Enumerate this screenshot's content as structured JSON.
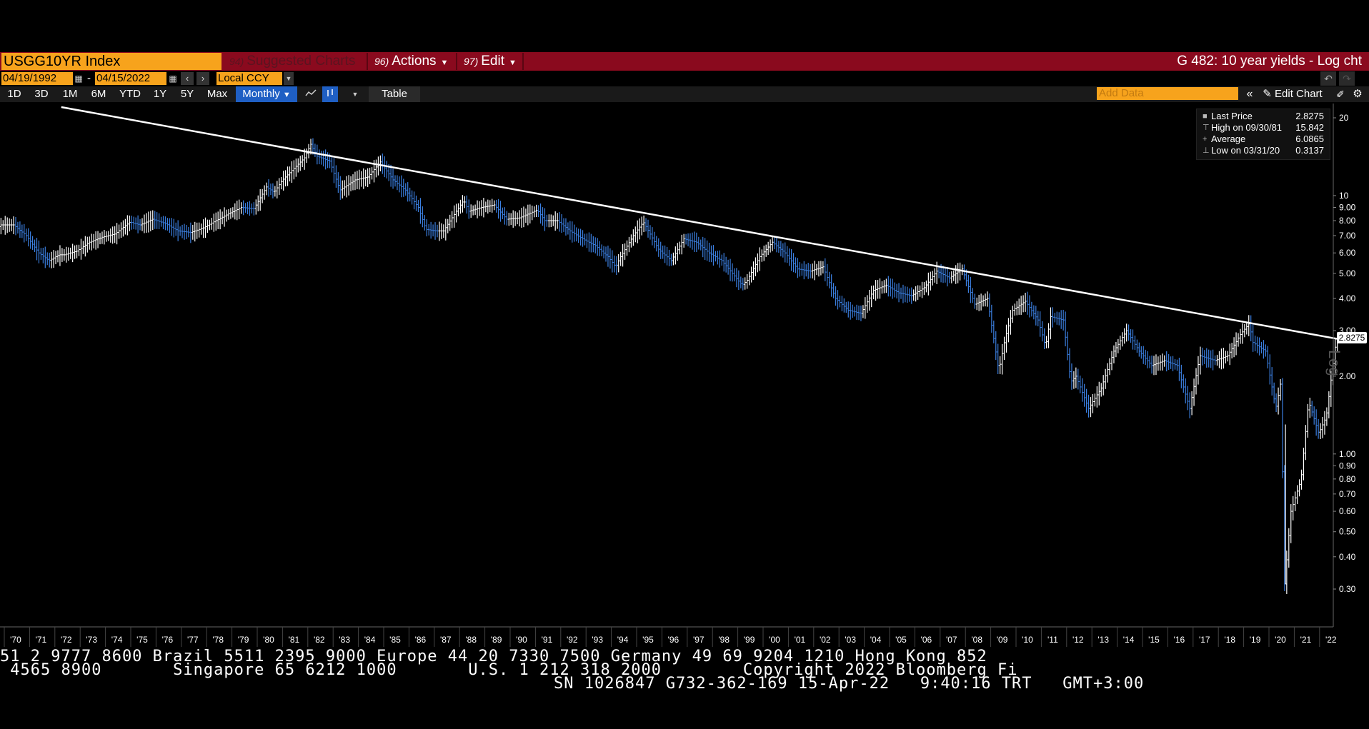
{
  "header": {
    "ticker": "USGG10YR Index",
    "menu": [
      {
        "num": "94)",
        "label": "Suggested Charts",
        "dim": true
      },
      {
        "num": "96)",
        "label": "Actions"
      },
      {
        "num": "97)",
        "label": "Edit"
      }
    ],
    "title": "G 482: 10 year yields - Log cht"
  },
  "dates": {
    "start": "04/19/1992",
    "end": "04/15/2022",
    "currency": "Local CCY"
  },
  "ranges": [
    "1D",
    "3D",
    "1M",
    "6M",
    "YTD",
    "1Y",
    "5Y",
    "Max"
  ],
  "frequency": "Monthly",
  "table_label": "Table",
  "add_data_placeholder": "Add Data",
  "edit_chart_label": "Edit Chart",
  "legend": [
    {
      "label": "Last Price",
      "value": "2.8275"
    },
    {
      "label": "High on 09/30/81",
      "value": "15.842"
    },
    {
      "label": "Average",
      "value": "6.0865"
    },
    {
      "label": "Low on 03/31/20",
      "value": "0.3137"
    }
  ],
  "last_price_tag": "2.8275",
  "scale_tag": "Log",
  "tape": {
    "line1": "51 2 9777 8600 Brazil 5511 2395 9000 Europe 44 20 7330 7500 Germany 49 69 9204 1210 Hong Kong 852",
    "line2": " 4565 8900       Singapore 65 6212 1000       U.S. 1 212 318 2000        Copyright 2022 Bloomberg Fi",
    "line3": "SN 1026847 G732-362-169 15-Apr-22   9:40:16 TRT   GMT+3:00"
  },
  "colors": {
    "accent": "#f7a31c",
    "titlebar": "#8a0a1e",
    "up": "#ffffff",
    "down": "#3b7fe0"
  },
  "chart_data": {
    "type": "line",
    "scale": "log",
    "grid": false,
    "legend_position": "top-right",
    "ylim": [
      0.27,
      22
    ],
    "yticks": [
      "20",
      "10",
      "9.00",
      "8.00",
      "7.00",
      "6.00",
      "5.00",
      "4.00",
      "3.00",
      "2.00",
      "1.00",
      "0.90",
      "0.80",
      "0.70",
      "0.60",
      "0.50",
      "0.40",
      "0.30"
    ],
    "yvalues": [
      20,
      10,
      9,
      8,
      7,
      6,
      5,
      4,
      3,
      2,
      1,
      0.9,
      0.8,
      0.7,
      0.6,
      0.5,
      0.4,
      0.3
    ],
    "xlim": [
      1969.0,
      2022.6
    ],
    "xticks": [
      "'70",
      "'71",
      "'72",
      "'73",
      "'74",
      "'75",
      "'76",
      "'77",
      "'78",
      "'79",
      "'80",
      "'81",
      "'82",
      "'83",
      "'84",
      "'85",
      "'86",
      "'87",
      "'88",
      "'89",
      "'90",
      "'91",
      "'92",
      "'93",
      "'94",
      "'95",
      "'96",
      "'97",
      "'98",
      "'99",
      "'00",
      "'01",
      "'02",
      "'03",
      "'04",
      "'05",
      "'06",
      "'07",
      "'08",
      "'09",
      "'10",
      "'11",
      "'12",
      "'13",
      "'14",
      "'15",
      "'16",
      "'17",
      "'18",
      "'19",
      "'20",
      "'21",
      "'22"
    ],
    "series": [
      {
        "x": [
          1969.0,
          1969.5,
          1970.0,
          1970.5,
          1971.0,
          1971.4,
          1971.8,
          1972.0,
          1972.5,
          1973.0,
          1973.5,
          1974.0,
          1974.6,
          1975.0,
          1975.5,
          1976.0,
          1976.5,
          1977.0,
          1977.5,
          1978.0,
          1978.5,
          1979.0,
          1979.5,
          1980.0,
          1980.3,
          1980.6,
          1981.0,
          1981.5,
          1981.75,
          1982.0,
          1982.5,
          1982.9,
          1983.5,
          1984.0,
          1984.5,
          1985.0,
          1985.5,
          1986.0,
          1986.3,
          1986.7,
          1987.0,
          1987.5,
          1987.8,
          1988.0,
          1988.5,
          1989.0,
          1989.5,
          1990.0,
          1990.7,
          1991.0,
          1991.5,
          1992.0,
          1992.5,
          1993.0,
          1993.5,
          1993.8,
          1994.0,
          1994.5,
          1994.9,
          1995.5,
          1996.0,
          1996.5,
          1997.0,
          1997.5,
          1998.0,
          1998.8,
          1999.0,
          1999.5,
          2000.0,
          2000.5,
          2001.0,
          2001.5,
          2002.0,
          2002.5,
          2003.0,
          2003.5,
          2004.0,
          2004.5,
          2005.0,
          2005.5,
          2006.0,
          2006.5,
          2007.0,
          2007.5,
          2008.0,
          2008.5,
          2008.95,
          2009.2,
          2009.5,
          2010.0,
          2010.5,
          2010.8,
          2011.0,
          2011.5,
          2011.8,
          2012.0,
          2012.5,
          2013.0,
          2013.5,
          2014.0,
          2014.5,
          2015.0,
          2015.5,
          2016.0,
          2016.5,
          2016.9,
          2017.5,
          2018.0,
          2018.5,
          2018.85,
          2019.0,
          2019.5,
          2019.9,
          2020.1,
          2020.25,
          2020.5,
          2020.9,
          2021.2,
          2021.6,
          2021.9,
          2022.3
        ],
        "y": [
          7.0,
          7.7,
          7.7,
          7.0,
          6.0,
          5.6,
          5.9,
          5.9,
          6.1,
          6.6,
          6.9,
          7.1,
          7.9,
          7.7,
          8.1,
          7.8,
          7.3,
          7.2,
          7.5,
          8.0,
          8.5,
          9.0,
          8.9,
          10.8,
          10.3,
          11.4,
          12.5,
          14.0,
          15.8,
          14.2,
          13.6,
          10.5,
          11.5,
          11.8,
          13.5,
          11.5,
          10.5,
          9.0,
          7.4,
          7.3,
          7.3,
          8.7,
          9.6,
          8.7,
          9.0,
          9.2,
          8.1,
          8.2,
          8.8,
          8.0,
          8.0,
          7.3,
          6.8,
          6.4,
          5.8,
          5.3,
          5.8,
          7.0,
          7.9,
          6.2,
          5.6,
          6.8,
          6.6,
          6.0,
          5.6,
          4.5,
          4.7,
          5.8,
          6.6,
          6.0,
          5.2,
          5.1,
          5.3,
          4.0,
          3.6,
          3.5,
          4.3,
          4.5,
          4.2,
          4.1,
          4.4,
          5.1,
          4.8,
          5.2,
          3.8,
          4.0,
          2.1,
          2.8,
          3.6,
          3.9,
          3.3,
          2.6,
          3.4,
          3.3,
          1.9,
          2.0,
          1.5,
          1.8,
          2.5,
          3.0,
          2.5,
          2.2,
          2.3,
          2.2,
          1.5,
          2.4,
          2.3,
          2.4,
          2.9,
          3.2,
          2.7,
          2.5,
          1.5,
          1.9,
          0.3137,
          0.6,
          0.8,
          1.6,
          1.2,
          1.4,
          2.8275
        ]
      }
    ],
    "trendline": {
      "x": [
        1971.8,
        2022.6
      ],
      "y": [
        22.0,
        2.75
      ]
    }
  }
}
